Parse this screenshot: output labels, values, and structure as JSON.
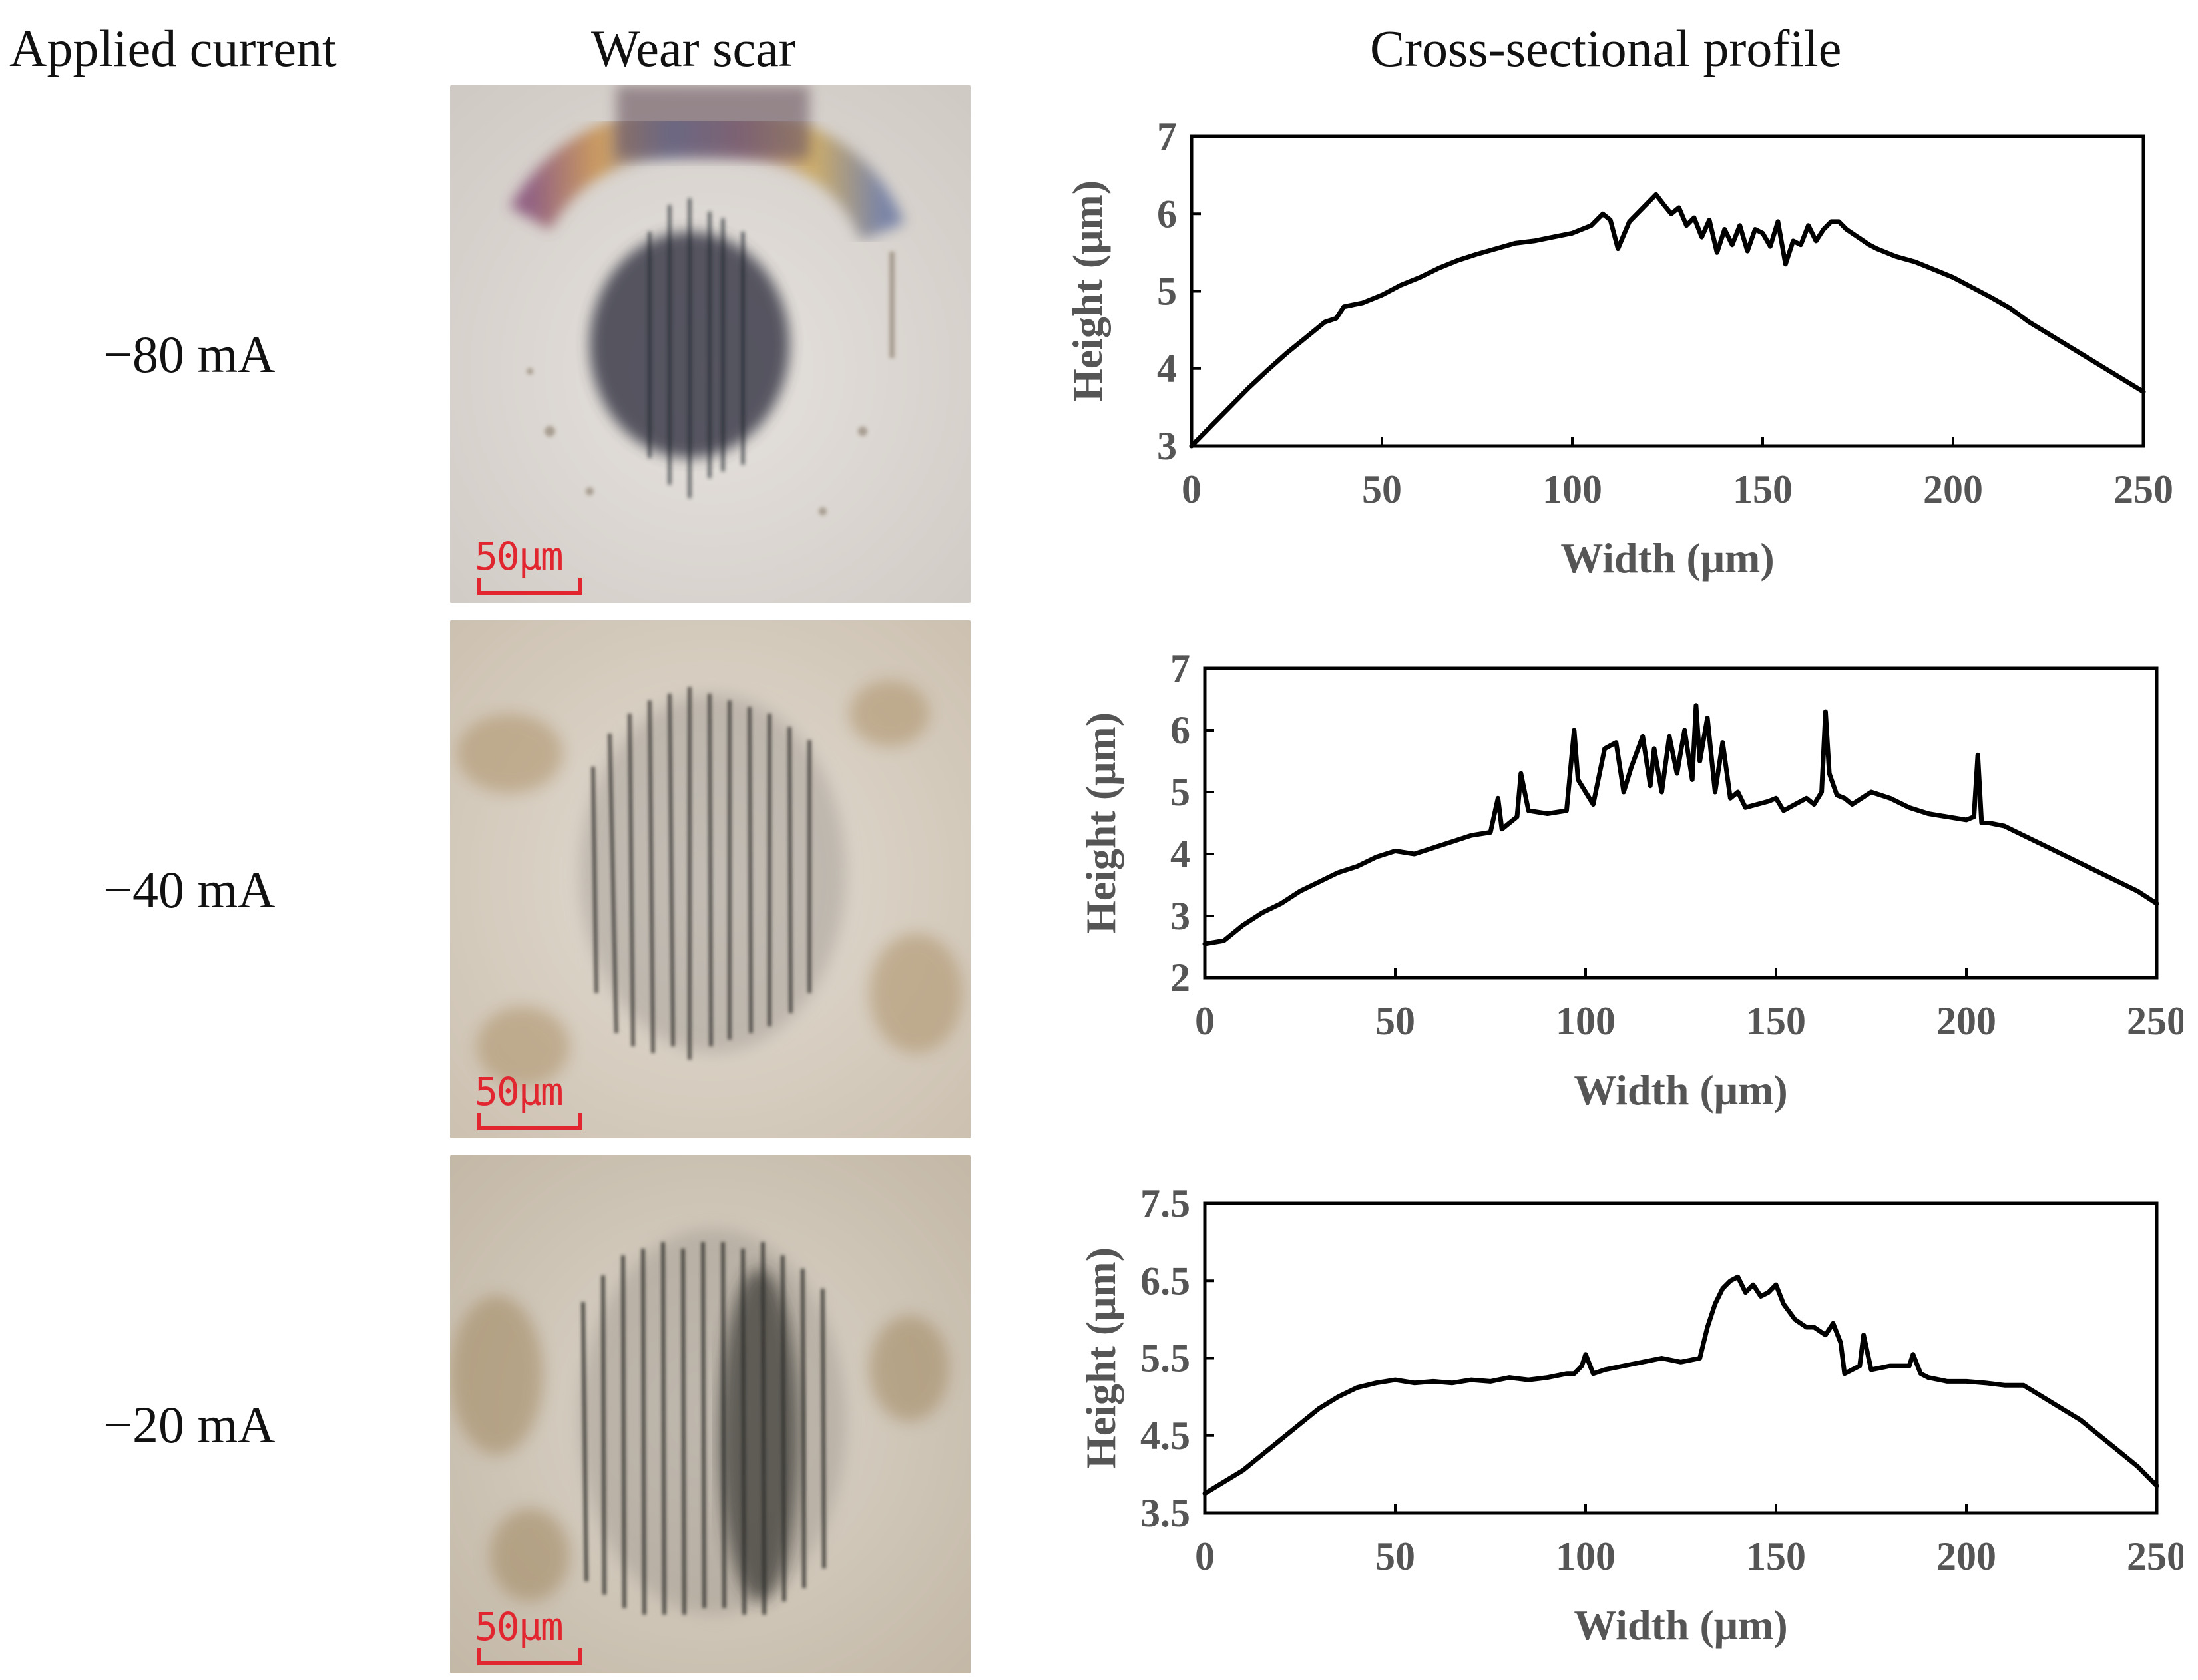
{
  "headers": {
    "applied_current": "Applied current",
    "wear_scar": "Wear scar",
    "profile": "Cross-sectional profile"
  },
  "rows": [
    {
      "current": "−80 mA",
      "scale_label": "50μm",
      "scar_tint": "#3c3e4c",
      "scar_shape": "round-dark"
    },
    {
      "current": "−40 mA",
      "scale_label": "50μm",
      "scar_tint": "#3a3836",
      "scar_shape": "striated"
    },
    {
      "current": "−20 mA",
      "scale_label": "50μm",
      "scar_tint": "#2f2d2c",
      "scar_shape": "striated-dark-center"
    }
  ],
  "colors": {
    "scale_red": "#e22630",
    "line": "#000000",
    "axis_text": "#555555"
  },
  "chart_data": [
    {
      "type": "line",
      "xlabel": "Width (μm)",
      "ylabel": "Height (μm)",
      "xlim": [
        0,
        250
      ],
      "ylim": [
        3,
        7
      ],
      "xticks": [
        0,
        50,
        100,
        150,
        200,
        250
      ],
      "yticks": [
        3,
        4,
        5,
        6,
        7
      ],
      "ytick_labels": [
        "3",
        "4",
        "5",
        "6",
        "7"
      ],
      "series": [
        {
          "name": "−80 mA",
          "x": [
            0,
            5,
            10,
            15,
            20,
            25,
            30,
            35,
            38,
            40,
            45,
            50,
            55,
            60,
            65,
            70,
            75,
            80,
            85,
            90,
            95,
            100,
            105,
            108,
            110,
            112,
            115,
            118,
            120,
            122,
            124,
            126,
            128,
            130,
            132,
            134,
            136,
            138,
            140,
            142,
            144,
            146,
            148,
            150,
            152,
            154,
            156,
            158,
            160,
            162,
            164,
            166,
            168,
            170,
            172,
            175,
            178,
            180,
            185,
            190,
            195,
            200,
            205,
            210,
            215,
            220,
            225,
            230,
            235,
            240,
            245,
            250
          ],
          "y": [
            3.0,
            3.25,
            3.5,
            3.75,
            3.98,
            4.2,
            4.4,
            4.6,
            4.65,
            4.8,
            4.85,
            4.95,
            5.08,
            5.18,
            5.3,
            5.4,
            5.48,
            5.55,
            5.62,
            5.65,
            5.7,
            5.75,
            5.85,
            6.0,
            5.92,
            5.55,
            5.9,
            6.05,
            6.15,
            6.25,
            6.12,
            6.0,
            6.08,
            5.85,
            5.95,
            5.7,
            5.92,
            5.5,
            5.8,
            5.6,
            5.85,
            5.52,
            5.8,
            5.75,
            5.58,
            5.9,
            5.35,
            5.65,
            5.6,
            5.85,
            5.65,
            5.8,
            5.9,
            5.9,
            5.8,
            5.7,
            5.6,
            5.55,
            5.45,
            5.38,
            5.28,
            5.18,
            5.05,
            4.92,
            4.78,
            4.6,
            4.45,
            4.3,
            4.15,
            4.0,
            3.85,
            3.7
          ]
        }
      ]
    },
    {
      "type": "line",
      "xlabel": "Width (μm)",
      "ylabel": "Height (μm)",
      "xlim": [
        0,
        250
      ],
      "ylim": [
        2,
        7
      ],
      "xticks": [
        0,
        50,
        100,
        150,
        200,
        250
      ],
      "yticks": [
        2,
        3,
        4,
        5,
        6,
        7
      ],
      "ytick_labels": [
        "2",
        "3",
        "4",
        "5",
        "6",
        "7"
      ],
      "series": [
        {
          "name": "−40 mA",
          "x": [
            0,
            5,
            10,
            15,
            20,
            25,
            30,
            35,
            40,
            45,
            50,
            55,
            60,
            65,
            70,
            75,
            77,
            78,
            80,
            82,
            83,
            85,
            90,
            95,
            97,
            98,
            100,
            102,
            105,
            108,
            110,
            112,
            115,
            117,
            118,
            120,
            122,
            124,
            126,
            128,
            129,
            130,
            132,
            134,
            136,
            138,
            140,
            142,
            145,
            148,
            150,
            152,
            155,
            158,
            160,
            162,
            163,
            164,
            166,
            168,
            170,
            175,
            180,
            185,
            190,
            195,
            200,
            202,
            203,
            204,
            206,
            210,
            215,
            220,
            225,
            230,
            235,
            240,
            245,
            250
          ],
          "y": [
            2.55,
            2.6,
            2.85,
            3.05,
            3.2,
            3.4,
            3.55,
            3.7,
            3.8,
            3.95,
            4.05,
            4.0,
            4.1,
            4.2,
            4.3,
            4.35,
            4.9,
            4.4,
            4.5,
            4.6,
            5.3,
            4.7,
            4.65,
            4.7,
            6.0,
            5.2,
            5.0,
            4.8,
            5.7,
            5.8,
            5.0,
            5.4,
            5.9,
            5.1,
            5.7,
            5.0,
            5.9,
            5.3,
            6.0,
            5.2,
            6.4,
            5.5,
            6.2,
            5.0,
            5.8,
            4.9,
            5.0,
            4.75,
            4.8,
            4.85,
            4.9,
            4.7,
            4.8,
            4.9,
            4.8,
            5.0,
            6.3,
            5.3,
            4.95,
            4.9,
            4.8,
            5.0,
            4.9,
            4.75,
            4.65,
            4.6,
            4.55,
            4.6,
            5.6,
            4.5,
            4.5,
            4.45,
            4.3,
            4.15,
            4.0,
            3.85,
            3.7,
            3.55,
            3.4,
            3.2
          ]
        }
      ]
    },
    {
      "type": "line",
      "xlabel": "Width (μm)",
      "ylabel": "Height (μm)",
      "xlim": [
        0,
        250
      ],
      "ylim": [
        3.5,
        7.5
      ],
      "xticks": [
        0,
        50,
        100,
        150,
        200,
        250
      ],
      "yticks": [
        3.5,
        4.5,
        5.5,
        6.5,
        7.5
      ],
      "ytick_labels": [
        "3.5",
        "4.5",
        "5.5",
        "6.5",
        "7.5"
      ],
      "series": [
        {
          "name": "−20 mA",
          "x": [
            0,
            5,
            10,
            15,
            20,
            25,
            30,
            35,
            40,
            45,
            50,
            55,
            60,
            65,
            70,
            75,
            80,
            85,
            90,
            95,
            97,
            99,
            100,
            102,
            105,
            110,
            115,
            120,
            125,
            130,
            132,
            134,
            136,
            138,
            140,
            142,
            144,
            146,
            148,
            150,
            152,
            155,
            158,
            160,
            163,
            165,
            167,
            168,
            170,
            172,
            173,
            175,
            180,
            185,
            186,
            188,
            190,
            195,
            200,
            205,
            210,
            215,
            220,
            225,
            230,
            235,
            240,
            245,
            250
          ],
          "y": [
            3.75,
            3.9,
            4.05,
            4.25,
            4.45,
            4.65,
            4.85,
            5.0,
            5.12,
            5.18,
            5.22,
            5.18,
            5.2,
            5.18,
            5.22,
            5.2,
            5.25,
            5.22,
            5.25,
            5.3,
            5.3,
            5.4,
            5.55,
            5.3,
            5.35,
            5.4,
            5.45,
            5.5,
            5.45,
            5.5,
            5.9,
            6.2,
            6.4,
            6.5,
            6.55,
            6.35,
            6.45,
            6.3,
            6.35,
            6.45,
            6.2,
            6.0,
            5.9,
            5.9,
            5.8,
            5.95,
            5.7,
            5.3,
            5.35,
            5.4,
            5.8,
            5.35,
            5.4,
            5.4,
            5.55,
            5.3,
            5.25,
            5.2,
            5.2,
            5.18,
            5.15,
            5.15,
            5.0,
            4.85,
            4.7,
            4.5,
            4.3,
            4.1,
            3.85
          ]
        }
      ]
    }
  ]
}
